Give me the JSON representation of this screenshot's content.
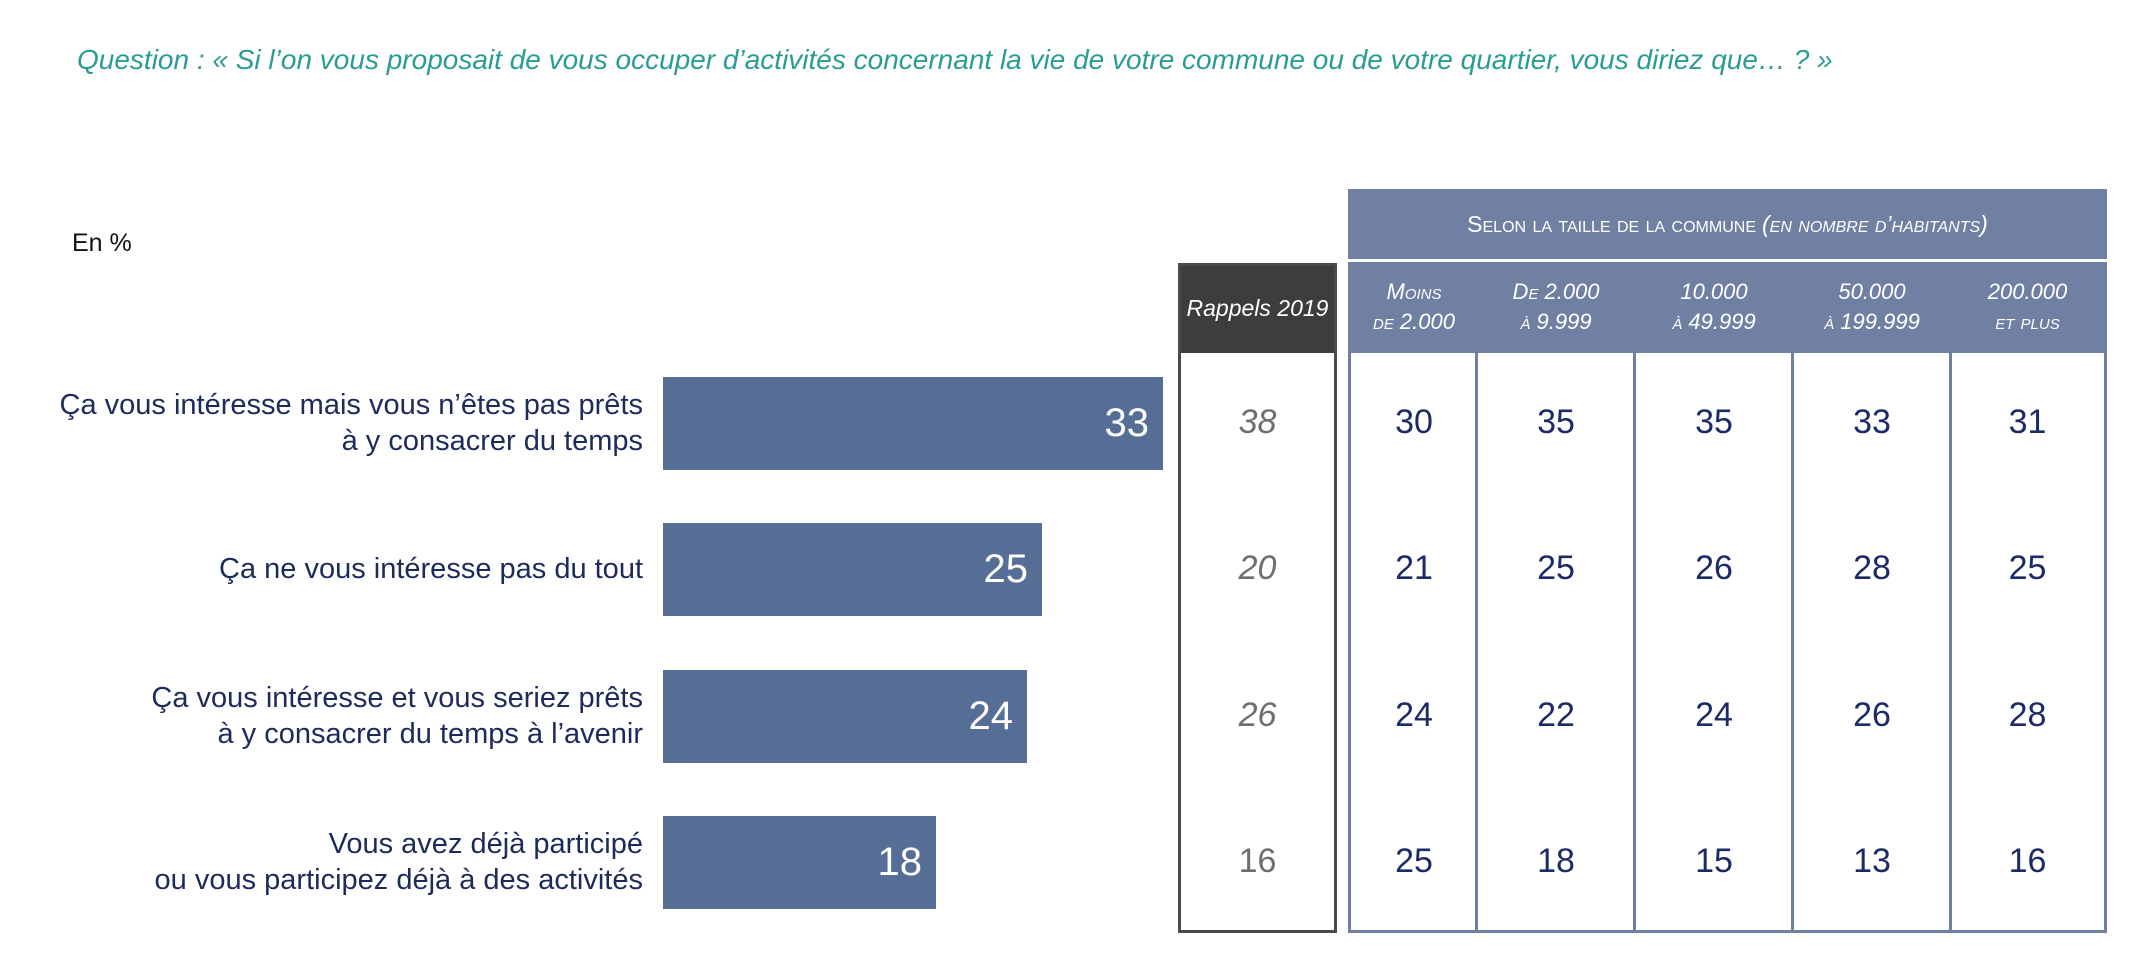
{
  "question": "Question : « Si l’on vous proposait de vous occuper d’activités concernant la vie de votre commune ou de votre quartier, vous diriez que… ?  »",
  "unit_label": "En %",
  "colors": {
    "bar": "#566e96",
    "question": "#2a9d93",
    "header": "#7080a3",
    "rappel_header": "#3d3d3d"
  },
  "chart_data": {
    "type": "bar",
    "orientation": "horizontal",
    "categories": [
      [
        "Ça vous intéresse mais vous n’êtes pas prêts",
        "à y consacrer du temps"
      ],
      [
        "Ça ne vous intéresse pas du tout"
      ],
      [
        "Ça vous intéresse et vous seriez prêts",
        "à y consacrer du temps à l’avenir"
      ],
      [
        "Vous avez déjà participé",
        "ou vous participez déjà à des activités"
      ]
    ],
    "values": [
      33,
      25,
      24,
      18
    ],
    "xlim": [
      0,
      33
    ]
  },
  "rappels": {
    "header": "Rappels 2019",
    "values": [
      "38",
      "20",
      "26",
      "16"
    ]
  },
  "table": {
    "group_header_main": "Selon la taille de la commune",
    "group_header_sub": "(en nombre d’habitants)",
    "columns": [
      [
        "Moins",
        "de 2.000"
      ],
      [
        "De 2.000",
        "à 9.999"
      ],
      [
        "10.000",
        "à 49.999"
      ],
      [
        "50.000",
        "à 199.999"
      ],
      [
        "200.000",
        "et plus"
      ]
    ],
    "rows": [
      [
        "30",
        "35",
        "35",
        "33",
        "31"
      ],
      [
        "21",
        "25",
        "26",
        "28",
        "25"
      ],
      [
        "24",
        "22",
        "24",
        "26",
        "28"
      ],
      [
        "25",
        "18",
        "15",
        "13",
        "16"
      ]
    ]
  }
}
